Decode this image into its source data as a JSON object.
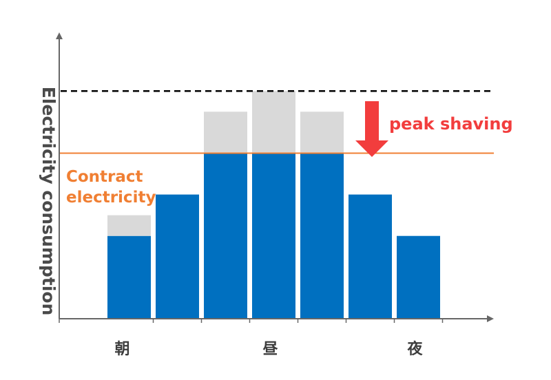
{
  "chart_data": {
    "type": "bar",
    "ylabel": "Electricity consumption",
    "xlabel": "",
    "categories": [
      "",
      "",
      "",
      "",
      "",
      "",
      ""
    ],
    "x_tick_labels": [
      {
        "label": "朝",
        "slot": 0.5
      },
      {
        "label": "昼",
        "slot": 3.5
      },
      {
        "label": "夜",
        "slot": 6.5
      }
    ],
    "series": [
      {
        "values": [
          20,
          30,
          40,
          40,
          40,
          30,
          20
        ],
        "color": "#0070c0"
      },
      {
        "values": [
          5,
          0,
          10,
          15,
          10,
          0,
          0
        ],
        "color": "#d9d9d9"
      }
    ],
    "reference_lines": [
      {
        "label": "Contract electricity",
        "value": 40,
        "style": "solid",
        "color": "#f07f33"
      },
      {
        "label": "",
        "value": 55,
        "style": "dashed",
        "color": "#000000"
      }
    ],
    "annotations": [
      {
        "text": "peak shaving",
        "color": "#f23d3d",
        "shape": "down-arrow"
      },
      {
        "text": "Contract\nelectricity",
        "color": "#f07f33"
      }
    ],
    "ylim": [
      0,
      72
    ],
    "grid": false
  }
}
